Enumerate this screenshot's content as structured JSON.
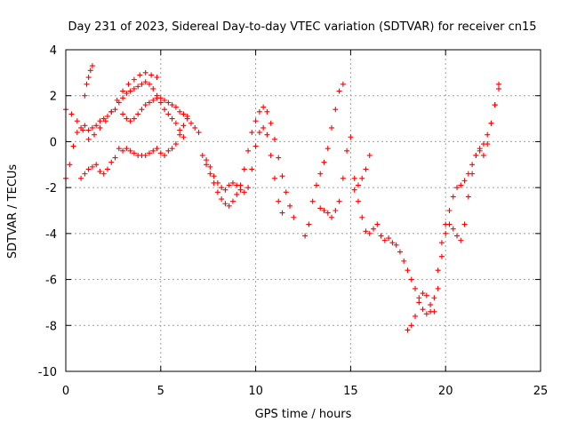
{
  "chart_data": {
    "type": "scatter",
    "title": "Day 231 of 2023, Sidereal Day-to-day VTEC variation (SDTVAR) for receiver cn15",
    "xlabel": "GPS time / hours",
    "ylabel": "SDTVAR / TECUs",
    "xlim": [
      0,
      25
    ],
    "ylim": [
      -10,
      4
    ],
    "xticks": [
      "0",
      "5",
      "10",
      "15",
      "20",
      "25"
    ],
    "yticks": [
      "4",
      "2",
      "0",
      "-2",
      "-4",
      "-6",
      "-8",
      "-10"
    ],
    "grid": true,
    "marker": "plus",
    "color": "#ff0000",
    "series": [
      {
        "name": "trace-1",
        "x": [
          0.0,
          0.3,
          0.6,
          0.9,
          1.2,
          1.5,
          1.8,
          2.1,
          2.4,
          2.7,
          3.0,
          3.3,
          3.6,
          3.9,
          4.2,
          4.5,
          4.8
        ],
        "y": [
          1.4,
          1.2,
          0.9,
          0.5,
          0.1,
          0.3,
          0.6,
          0.9,
          1.3,
          1.8,
          2.2,
          2.5,
          2.7,
          2.9,
          3.0,
          2.9,
          2.8
        ]
      },
      {
        "name": "trace-2",
        "x": [
          0.0,
          0.2,
          0.4,
          0.6,
          0.8,
          1.0,
          1.2,
          1.4,
          1.6,
          1.8,
          2.0,
          2.2,
          2.4,
          2.6,
          2.8,
          3.0,
          3.2,
          3.4,
          3.6,
          3.8,
          4.0,
          4.2,
          4.4,
          4.6,
          4.8,
          5.0,
          5.2,
          5.4,
          5.6,
          5.8,
          6.0,
          6.2
        ],
        "y": [
          -1.6,
          -1.0,
          -0.2,
          0.4,
          0.6,
          0.7,
          0.5,
          0.6,
          0.7,
          0.9,
          1.0,
          1.1,
          1.3,
          1.4,
          1.7,
          1.9,
          2.1,
          2.2,
          2.3,
          2.4,
          2.5,
          2.6,
          2.5,
          2.3,
          2.0,
          1.7,
          1.4,
          1.2,
          1.0,
          0.8,
          0.5,
          0.2
        ]
      },
      {
        "name": "trace-3",
        "x": [
          0.8,
          1.0,
          1.2,
          1.4,
          1.6,
          1.8,
          2.0,
          2.2,
          2.4,
          2.6,
          2.8,
          3.0,
          3.2,
          3.4,
          3.6,
          3.8,
          4.0,
          4.2,
          4.4,
          4.6,
          4.8,
          5.0,
          5.2,
          5.4,
          5.6,
          5.8,
          6.0,
          6.2,
          6.4
        ],
        "y": [
          -1.6,
          -1.4,
          -1.2,
          -1.1,
          -1.0,
          -1.3,
          -1.4,
          -1.2,
          -0.9,
          -0.7,
          -0.3,
          -0.4,
          -0.3,
          -0.4,
          -0.5,
          -0.6,
          -0.6,
          -0.6,
          -0.5,
          -0.4,
          -0.3,
          -0.5,
          -0.6,
          -0.4,
          -0.3,
          -0.1,
          0.3,
          0.7,
          1.1
        ]
      },
      {
        "name": "trace-4",
        "x": [
          1.0,
          1.1,
          1.2,
          1.3,
          1.4
        ],
        "y": [
          2.0,
          2.5,
          2.8,
          3.1,
          3.3
        ]
      },
      {
        "name": "trace-5",
        "x": [
          3.0,
          3.2,
          3.4,
          3.6,
          3.8,
          4.0,
          4.2,
          4.4,
          4.6,
          4.8,
          5.0,
          5.2,
          5.4,
          5.6,
          5.8,
          6.0,
          6.2,
          6.4,
          6.6,
          6.8,
          7.0
        ],
        "y": [
          1.2,
          1.0,
          0.9,
          1.0,
          1.2,
          1.4,
          1.6,
          1.7,
          1.8,
          1.9,
          1.9,
          1.8,
          1.7,
          1.6,
          1.5,
          1.3,
          1.2,
          1.0,
          0.8,
          0.6,
          0.4
        ]
      },
      {
        "name": "trace-6",
        "x": [
          7.2,
          7.4,
          7.6,
          7.8,
          8.0,
          8.2,
          8.4,
          8.6,
          8.8,
          9.0,
          9.2,
          9.4,
          9.6,
          9.8,
          10.0,
          10.2,
          10.4,
          10.6,
          10.8,
          11.0,
          11.2,
          11.4,
          11.6,
          11.8,
          12.0
        ],
        "y": [
          -0.6,
          -1.0,
          -1.4,
          -1.8,
          -2.2,
          -2.5,
          -2.7,
          -2.8,
          -2.6,
          -2.3,
          -1.9,
          -1.2,
          -0.4,
          0.4,
          0.9,
          1.3,
          1.5,
          1.3,
          0.8,
          0.1,
          -0.7,
          -1.5,
          -2.2,
          -2.8,
          -3.3
        ]
      },
      {
        "name": "trace-7",
        "x": [
          7.4,
          7.6,
          7.8,
          8.0,
          8.2,
          8.4,
          8.6,
          8.8,
          9.0,
          9.2,
          9.4,
          9.6,
          9.8,
          10.0,
          10.2,
          10.4,
          10.6,
          10.8,
          11.0,
          11.2,
          11.4
        ],
        "y": [
          -0.8,
          -1.1,
          -1.5,
          -1.8,
          -2.0,
          -2.1,
          -1.9,
          -1.8,
          -1.9,
          -2.1,
          -2.2,
          -2.0,
          -1.2,
          -0.2,
          0.4,
          0.6,
          0.3,
          -0.6,
          -1.6,
          -2.6,
          -3.1
        ]
      },
      {
        "name": "trace-8",
        "x": [
          12.6,
          12.8,
          13.0,
          13.2,
          13.4,
          13.6,
          13.8,
          14.0,
          14.2,
          14.4,
          14.6
        ],
        "y": [
          -4.1,
          -3.6,
          -2.6,
          -1.9,
          -1.4,
          -0.9,
          -0.3,
          0.6,
          1.4,
          2.2,
          2.5
        ]
      },
      {
        "name": "trace-9",
        "x": [
          13.4,
          13.6,
          13.8,
          14.0,
          14.2,
          14.4,
          14.6,
          14.8,
          15.0,
          15.2,
          15.4,
          15.6,
          15.8,
          16.0,
          16.2,
          16.4,
          16.6,
          16.8,
          17.0,
          17.2,
          17.4,
          17.6,
          17.8,
          18.0,
          18.2,
          18.4,
          18.6,
          18.8,
          19.0,
          19.2,
          19.4,
          19.6,
          19.8,
          20.0,
          20.2,
          20.4,
          20.6,
          20.8,
          21.0,
          21.2,
          21.4,
          21.6,
          21.8,
          22.0,
          22.2,
          22.4,
          22.6,
          22.8
        ],
        "y": [
          -2.9,
          -3.0,
          -3.1,
          -3.3,
          -3.0,
          -2.6,
          -1.6,
          -0.4,
          0.2,
          -1.6,
          -2.6,
          -3.3,
          -3.9,
          -4.0,
          -3.8,
          -3.6,
          -4.1,
          -4.3,
          -4.2,
          -4.4,
          -4.5,
          -4.8,
          -5.2,
          -5.6,
          -6.0,
          -6.4,
          -6.8,
          -7.3,
          -7.5,
          -7.4,
          -6.8,
          -5.6,
          -4.4,
          -3.6,
          -3.0,
          -2.4,
          -2.0,
          -1.9,
          -1.7,
          -1.4,
          -1.0,
          -0.6,
          -0.3,
          -0.1,
          0.3,
          0.8,
          1.6,
          2.5
        ]
      },
      {
        "name": "trace-10",
        "x": [
          18.0,
          18.2,
          18.4,
          18.6,
          18.8,
          19.0,
          19.2,
          19.4,
          19.6,
          19.8,
          20.0,
          20.2,
          20.4,
          20.6,
          20.8,
          21.0,
          21.2,
          21.4,
          21.6,
          21.8,
          22.0,
          22.2,
          22.4,
          22.6,
          22.8
        ],
        "y": [
          -8.2,
          -8.0,
          -7.6,
          -7.0,
          -6.6,
          -6.7,
          -7.1,
          -7.4,
          -6.4,
          -5.0,
          -4.0,
          -3.6,
          -3.8,
          -4.1,
          -4.3,
          -3.6,
          -2.4,
          -1.4,
          -0.6,
          -0.4,
          -0.6,
          -0.1,
          0.8,
          1.6,
          2.3
        ]
      },
      {
        "name": "trace-11",
        "x": [
          15.2,
          15.4,
          15.6,
          15.8,
          16.0
        ],
        "y": [
          -2.1,
          -1.9,
          -1.6,
          -1.2,
          -0.6
        ]
      }
    ]
  }
}
